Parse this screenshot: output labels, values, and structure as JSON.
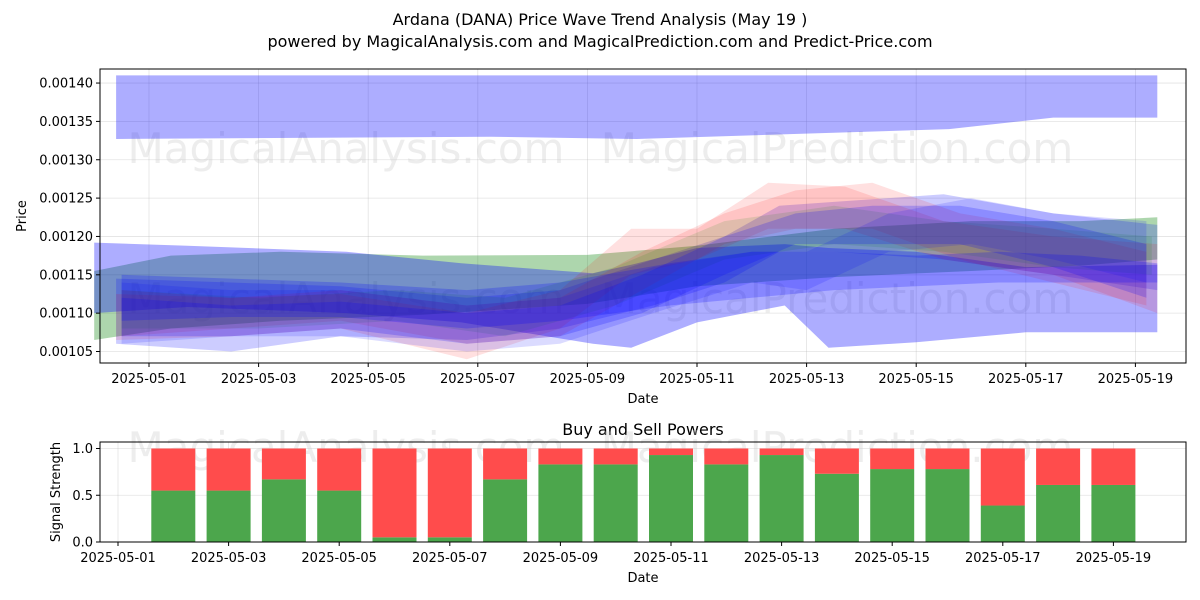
{
  "chart_data": [
    {
      "type": "area",
      "title_line1": "Ardana (DANA) Price Wave Trend Analysis (May 19 )",
      "title_line2": "powered by MagicalAnalysis.com and MagicalPrediction.com and Predict-Price.com",
      "xlabel": "Date",
      "ylabel": "Price",
      "x_range": [
        "2025-04-30",
        "2025-05-20"
      ],
      "ylim": [
        0.001035,
        0.001418
      ],
      "y_ticks": [
        "0.00105",
        "0.00110",
        "0.00115",
        "0.00120",
        "0.00125",
        "0.00130",
        "0.00135",
        "0.00140"
      ],
      "x_ticks": [
        "2025-05-01",
        "2025-05-03",
        "2025-05-05",
        "2025-05-07",
        "2025-05-09",
        "2025-05-11",
        "2025-05-13",
        "2025-05-15",
        "2025-05-17",
        "2025-05-19"
      ],
      "watermarks": [
        "MagicalAnalysis.com",
        "MagicalPrediction.com"
      ],
      "grid": true,
      "series": [
        {
          "name": "upper-band",
          "color": "#0000ff",
          "alpha": 0.32,
          "x": [
            0.0,
            0.36,
            0.5,
            0.8,
            0.9,
            1.0
          ],
          "upper": [
            0.00141,
            0.00141,
            0.00141,
            0.00141,
            0.00141,
            0.00141
          ],
          "lower": [
            0.001327,
            0.00133,
            0.001327,
            0.00134,
            0.001355,
            0.001355
          ]
        },
        {
          "name": "green-band",
          "color": "#008000",
          "alpha": 0.32,
          "x": [
            0,
            1.4,
            3.4,
            6.0,
            9.0,
            11.0,
            13.5,
            16.0,
            18.0,
            19.4
          ],
          "upper": [
            0.001155,
            0.001175,
            0.00118,
            0.001175,
            0.001176,
            0.001188,
            0.00121,
            0.00122,
            0.00122,
            0.001225
          ],
          "lower": [
            0.001065,
            0.00108,
            0.00109,
            0.001098,
            0.001112,
            0.001135,
            0.001147,
            0.001155,
            0.001162,
            0.00117
          ]
        },
        {
          "name": "blue-band-1",
          "color": "#0000ff",
          "alpha": 0.32,
          "x": [
            0,
            1.7,
            4.6,
            6.7,
            9.1,
            9.8,
            11.0,
            12.6,
            13.4,
            15.0,
            17.0,
            19.4
          ],
          "upper": [
            0.001192,
            0.001188,
            0.00118,
            0.001165,
            0.001152,
            0.001163,
            0.001185,
            0.00119,
            0.001185,
            0.00118,
            0.00116,
            0.001163
          ],
          "lower": [
            0.0011,
            0.001108,
            0.0011,
            0.001088,
            0.00106,
            0.001055,
            0.001088,
            0.00111,
            0.001055,
            0.001062,
            0.001075,
            0.001075
          ]
        },
        {
          "name": "blue-band-2",
          "color": "#0000ff",
          "alpha": 0.2,
          "x": [
            0.4,
            2.5,
            4.5,
            6.8,
            8.5,
            10.2,
            11.5,
            12.5,
            13.5,
            15.5,
            17.5,
            19.4
          ],
          "upper": [
            0.001145,
            0.00114,
            0.001135,
            0.00112,
            0.00113,
            0.00117,
            0.0012,
            0.00124,
            0.001245,
            0.001255,
            0.00123,
            0.001215
          ],
          "lower": [
            0.00106,
            0.00105,
            0.00107,
            0.001065,
            0.00108,
            0.00111,
            0.00114,
            0.00118,
            0.00118,
            0.00117,
            0.00115,
            0.00113
          ]
        },
        {
          "name": "red-band-1",
          "color": "#ff0000",
          "alpha": 0.12,
          "x": [
            0.4,
            2.5,
            4.5,
            6.8,
            8.5,
            9.8,
            11.0,
            12.3,
            13.7,
            15.5,
            17.5,
            19.4
          ],
          "upper": [
            0.001125,
            0.00112,
            0.001125,
            0.0011,
            0.00113,
            0.00121,
            0.00121,
            0.00127,
            0.001265,
            0.00122,
            0.0012,
            0.00119
          ],
          "lower": [
            0.001065,
            0.00107,
            0.00108,
            0.00104,
            0.00108,
            0.00115,
            0.00117,
            0.00121,
            0.00121,
            0.00117,
            0.00115,
            0.0011
          ]
        },
        {
          "name": "red-band-2",
          "color": "#ff0000",
          "alpha": 0.12,
          "x": [
            0.5,
            2.5,
            4.5,
            6.8,
            8.5,
            10.0,
            11.5,
            12.8,
            14.2,
            15.8,
            17.5,
            19.2
          ],
          "upper": [
            0.00113,
            0.00112,
            0.00113,
            0.00111,
            0.00112,
            0.00118,
            0.00123,
            0.00126,
            0.00127,
            0.00123,
            0.00121,
            0.00118
          ],
          "lower": [
            0.00107,
            0.00108,
            0.00109,
            0.00106,
            0.00107,
            0.00113,
            0.00119,
            0.00121,
            0.00121,
            0.00117,
            0.00114,
            0.00111
          ]
        },
        {
          "name": "green-band-2",
          "color": "#008000",
          "alpha": 0.12,
          "x": [
            0.5,
            3.0,
            5.5,
            7.5,
            9.5,
            11.5,
            13.5,
            15.5,
            17.5,
            19.3
          ],
          "upper": [
            0.00113,
            0.00112,
            0.00113,
            0.00112,
            0.00116,
            0.00122,
            0.00124,
            0.00122,
            0.00121,
            0.0012
          ],
          "lower": [
            0.00108,
            0.00108,
            0.00109,
            0.00107,
            0.00111,
            0.00117,
            0.00119,
            0.00118,
            0.00116,
            0.00115
          ]
        },
        {
          "name": "blue-band-3",
          "color": "#0000ff",
          "alpha": 0.2,
          "x": [
            0.5,
            2.5,
            4.5,
            6.8,
            8.5,
            10.0,
            11.5,
            12.8,
            14.2,
            15.8,
            17.5,
            19.2
          ],
          "upper": [
            0.00112,
            0.00111,
            0.001115,
            0.0011,
            0.00111,
            0.00115,
            0.0012,
            0.00123,
            0.00124,
            0.00124,
            0.00122,
            0.00119
          ],
          "lower": [
            0.00107,
            0.00107,
            0.00108,
            0.00106,
            0.00107,
            0.0011,
            0.00115,
            0.00119,
            0.00119,
            0.00119,
            0.00116,
            0.00112
          ]
        },
        {
          "name": "blue-band-4",
          "color": "#0000ff",
          "alpha": 0.14,
          "x": [
            0.5,
            2.5,
            4.5,
            6.8,
            8.5,
            10.2,
            12.0,
            13.0,
            14.5,
            16.0,
            17.5,
            19.2
          ],
          "upper": [
            0.00114,
            0.00113,
            0.00113,
            0.00111,
            0.00112,
            0.00116,
            0.00118,
            0.00118,
            0.00123,
            0.00125,
            0.00123,
            0.00122
          ],
          "lower": [
            0.00106,
            0.00107,
            0.00107,
            0.00105,
            0.00106,
            0.0011,
            0.00114,
            0.00113,
            0.00118,
            0.00119,
            0.00117,
            0.00114
          ]
        },
        {
          "name": "blue-band-5",
          "color": "#0000ff",
          "alpha": 0.22,
          "x": [
            0.5,
            2.5,
            4.5,
            6.8,
            8.5,
            10.5,
            12.0,
            13.5,
            15.0,
            16.5,
            18.0,
            19.4
          ],
          "upper": [
            0.00115,
            0.001145,
            0.00114,
            0.00113,
            0.00114,
            0.001165,
            0.00118,
            0.00118,
            0.001175,
            0.00118,
            0.001175,
            0.001165
          ],
          "lower": [
            0.00109,
            0.001095,
            0.001095,
            0.00108,
            0.00109,
            0.00111,
            0.00112,
            0.00113,
            0.001135,
            0.00114,
            0.00114,
            0.00114
          ]
        }
      ]
    },
    {
      "type": "bar",
      "title": "Buy and Sell Powers",
      "xlabel": "Date",
      "ylabel": "Signal Strength",
      "ylim": [
        0,
        1.05
      ],
      "y_ticks": [
        "0.0",
        "0.5",
        "1.0"
      ],
      "x_ticks": [
        "2025-05-01",
        "2025-05-03",
        "2025-05-05",
        "2025-05-07",
        "2025-05-09",
        "2025-05-11",
        "2025-05-13",
        "2025-05-15",
        "2025-05-17",
        "2025-05-19"
      ],
      "buy_color": "#4ca64c",
      "sell_color": "#ff4c4c",
      "categories": [
        "2025-05-02",
        "2025-05-03",
        "2025-05-04",
        "2025-05-05",
        "2025-05-06",
        "2025-05-07",
        "2025-05-08",
        "2025-05-09",
        "2025-05-10",
        "2025-05-11",
        "2025-05-12",
        "2025-05-13",
        "2025-05-14",
        "2025-05-15",
        "2025-05-16",
        "2025-05-17",
        "2025-05-18",
        "2025-05-19"
      ],
      "buy": [
        0.55,
        0.55,
        0.67,
        0.55,
        0.05,
        0.05,
        0.67,
        0.83,
        0.83,
        0.93,
        0.83,
        0.93,
        0.73,
        0.78,
        0.78,
        0.39,
        0.61,
        0.61
      ],
      "sell": [
        0.45,
        0.45,
        0.33,
        0.45,
        0.95,
        0.95,
        0.33,
        0.17,
        0.17,
        0.07,
        0.17,
        0.07,
        0.27,
        0.22,
        0.22,
        0.61,
        0.39,
        0.39
      ]
    }
  ]
}
